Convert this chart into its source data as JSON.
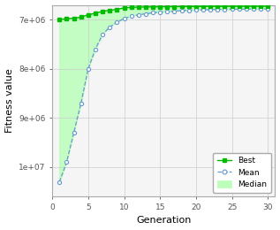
{
  "title": "",
  "xlabel": "Generation",
  "ylabel": "Fitness value",
  "x": [
    1,
    2,
    3,
    4,
    5,
    6,
    7,
    8,
    9,
    10,
    11,
    12,
    13,
    14,
    15,
    16,
    17,
    18,
    19,
    20,
    21,
    22,
    23,
    24,
    25,
    26,
    27,
    28,
    29,
    30
  ],
  "best": [
    -7000000,
    -6980000,
    -6970000,
    -6950000,
    -6900000,
    -6870000,
    -6830000,
    -6810000,
    -6790000,
    -6760000,
    -6750000,
    -6745000,
    -6742000,
    -6740000,
    -6738000,
    -6736000,
    -6735000,
    -6734000,
    -6733000,
    -6732000,
    -6731000,
    -6730000,
    -6730000,
    -6730000,
    -6729000,
    -6728000,
    -6728000,
    -6728000,
    -6728000,
    -6727000
  ],
  "mean": [
    -10300000,
    -9900000,
    -9300000,
    -8700000,
    -8000000,
    -7600000,
    -7300000,
    -7150000,
    -7050000,
    -6980000,
    -6930000,
    -6900000,
    -6880000,
    -6860000,
    -6845000,
    -6835000,
    -6825000,
    -6815000,
    -6808000,
    -6802000,
    -6798000,
    -6795000,
    -6792000,
    -6790000,
    -6788000,
    -6786000,
    -6784000,
    -6783000,
    -6782000,
    -6781000
  ],
  "median_low": [
    -10300000,
    -9900000,
    -9300000,
    -8700000,
    -8000000,
    -7600000,
    -7300000,
    -7150000,
    -7050000,
    -6980000,
    -6930000,
    -6900000,
    -6880000,
    -6860000,
    -6845000,
    -6835000,
    -6825000,
    -6815000,
    -6808000,
    -6802000,
    -6798000,
    -6795000,
    -6792000,
    -6790000,
    -6788000,
    -6786000,
    -6784000,
    -6783000,
    -6782000,
    -6781000
  ],
  "median_high": [
    -7000000,
    -6980000,
    -6970000,
    -6950000,
    -6900000,
    -6870000,
    -6830000,
    -6810000,
    -6790000,
    -6760000,
    -6750000,
    -6745000,
    -6742000,
    -6740000,
    -6738000,
    -6736000,
    -6735000,
    -6734000,
    -6733000,
    -6732000,
    -6731000,
    -6730000,
    -6730000,
    -6730000,
    -6729000,
    -6728000,
    -6728000,
    -6728000,
    -6728000,
    -6727000
  ],
  "best_color": "#00bb00",
  "mean_color": "#6699cc",
  "median_fill_color": "#bbffbb",
  "ylim_bottom": -6700000,
  "ylim_top": -10600000,
  "xlim_left": 0,
  "xlim_right": 31,
  "xticks": [
    0,
    5,
    10,
    15,
    20,
    25,
    30
  ],
  "yticks": [
    -7000000,
    -8000000,
    -9000000,
    -10000000
  ],
  "ytick_labels": [
    "7e+06",
    "8e+06",
    "9e+06",
    "1e+07"
  ],
  "background_color": "#f5f5f5",
  "grid_color": "#cccccc"
}
